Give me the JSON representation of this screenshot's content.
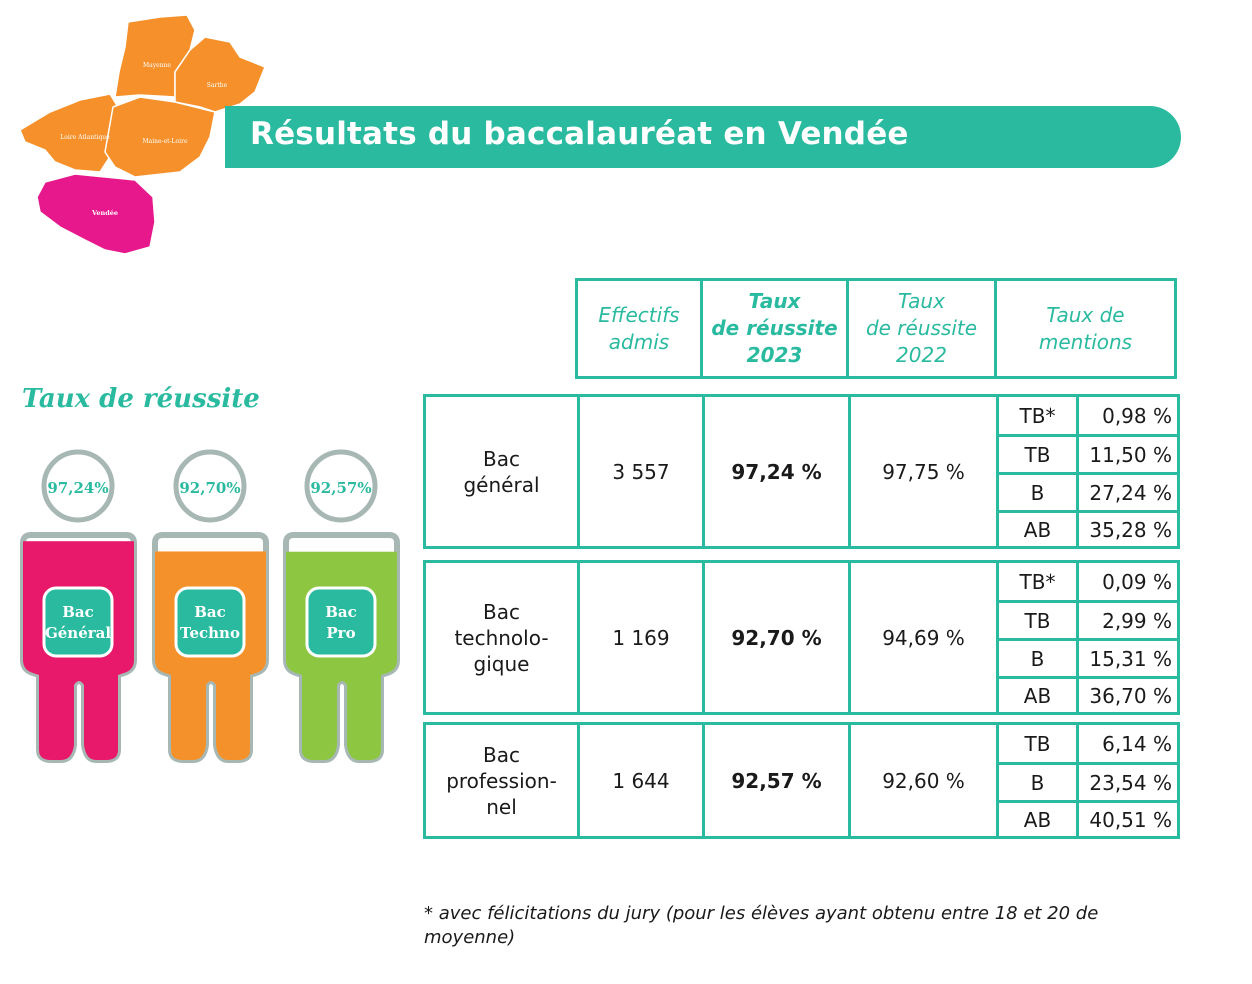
{
  "header": {
    "title": "Résultats du baccalauréat en Vendée"
  },
  "map": {
    "regions": [
      "Mayenne",
      "Sarthe",
      "Loire Atlantique",
      "Maine-et-Loire",
      "Vendée"
    ],
    "colors": {
      "other": "#f5902a",
      "highlight": "#e7178c"
    }
  },
  "side": {
    "title": "Taux de réussite",
    "figures": [
      {
        "pct": "97,24%",
        "label_line1": "Bac",
        "label_line2": "Général",
        "color": "#e8186a",
        "fill": 0.9724
      },
      {
        "pct": "92,70%",
        "label_line1": "Bac",
        "label_line2": "Techno",
        "color": "#f5912a",
        "fill": 0.927
      },
      {
        "pct": "92,57%",
        "label_line1": "Bac",
        "label_line2": "Pro",
        "color": "#8dc641",
        "fill": 0.9257
      }
    ]
  },
  "table": {
    "headers": {
      "effectifs": [
        "Effectifs",
        "admis"
      ],
      "taux2023": [
        "Taux",
        "de réussite",
        "2023"
      ],
      "taux2022": [
        "Taux",
        "de réussite",
        "2022"
      ],
      "mentions": [
        "Taux de",
        "mentions"
      ]
    },
    "rows": [
      {
        "name": [
          "Bac",
          "général"
        ],
        "effectifs": "3 557",
        "taux2023": "97,24 %",
        "taux2022": "97,75 %",
        "mentions": [
          {
            "label": "TB*",
            "value": "0,98 %"
          },
          {
            "label": "TB",
            "value": "11,50 %"
          },
          {
            "label": "B",
            "value": "27,24 %"
          },
          {
            "label": "AB",
            "value": "35,28 %"
          }
        ]
      },
      {
        "name": [
          "Bac",
          "technolo-",
          "gique"
        ],
        "effectifs": "1 169",
        "taux2023": "92,70 %",
        "taux2022": "94,69 %",
        "mentions": [
          {
            "label": "TB*",
            "value": "0,09 %"
          },
          {
            "label": "TB",
            "value": "2,99 %"
          },
          {
            "label": "B",
            "value": "15,31 %"
          },
          {
            "label": "AB",
            "value": "36,70 %"
          }
        ]
      },
      {
        "name": [
          "Bac",
          "profession-",
          "nel"
        ],
        "effectifs": "1 644",
        "taux2023": "92,57 %",
        "taux2022": "92,60 %",
        "mentions": [
          {
            "label": "TB",
            "value": "6,14 %"
          },
          {
            "label": "B",
            "value": "23,54 %"
          },
          {
            "label": "AB",
            "value": "40,51 %"
          }
        ]
      }
    ]
  },
  "footnote": "* avec félicitations du jury (pour les élèves ayant obtenu entre 18 et 20 de moyenne)",
  "colors": {
    "teal": "#2aba9f",
    "ring": "#a7b8b4"
  }
}
